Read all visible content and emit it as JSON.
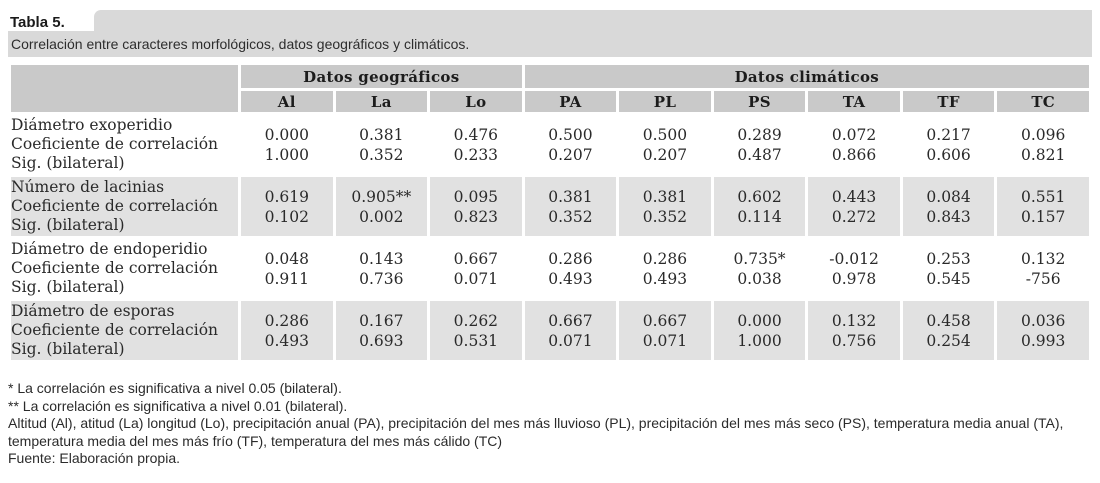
{
  "title": "Tabla 5.",
  "caption": "Correlación entre caracteres morfológicos, datos geográficos y climáticos.",
  "table": {
    "groups": [
      {
        "label": "Datos geográficos",
        "span": 3
      },
      {
        "label": "Datos climáticos",
        "span": 6
      }
    ],
    "columns": [
      "Al",
      "La",
      "Lo",
      "PA",
      "PL",
      "PS",
      "TA",
      "TF",
      "TC"
    ],
    "rows": [
      {
        "label_lines": [
          "Diámetro exoperidio",
          "Coeficiente de correlación",
          "Sig. (bilateral)"
        ],
        "coef": [
          "0.000",
          "0.381",
          "0.476",
          "0.500",
          "0.500",
          "0.289",
          "0.072",
          "0.217",
          "0.096"
        ],
        "sig": [
          "1.000",
          "0.352",
          "0.233",
          "0.207",
          "0.207",
          "0.487",
          "0.866",
          "0.606",
          "0.821"
        ]
      },
      {
        "label_lines": [
          "Número de lacinias",
          "Coeficiente de correlación",
          "Sig. (bilateral)"
        ],
        "coef": [
          "0.619",
          "0.905**",
          "0.095",
          "0.381",
          "0.381",
          "0.602",
          "0.443",
          "0.084",
          "0.551"
        ],
        "sig": [
          "0.102",
          "0.002",
          "0.823",
          "0.352",
          "0.352",
          "0.114",
          "0.272",
          "0.843",
          "0.157"
        ]
      },
      {
        "label_lines": [
          "Diámetro de endoperidio",
          "Coeficiente de correlación",
          "Sig. (bilateral)"
        ],
        "coef": [
          "0.048",
          "0.143",
          "0.667",
          "0.286",
          "0.286",
          "0.735*",
          "-0.012",
          "0.253",
          "0.132"
        ],
        "sig": [
          "0.911",
          "0.736",
          "0.071",
          "0.493",
          "0.493",
          "0.038",
          "0.978",
          "0.545",
          "-756"
        ]
      },
      {
        "label_lines": [
          "Diámetro de esporas",
          "Coeficiente de correlación",
          "Sig. (bilateral)"
        ],
        "coef": [
          "0.286",
          "0.167",
          "0.262",
          "0.667",
          "0.667",
          "0.000",
          "0.132",
          "0.458",
          "0.036"
        ],
        "sig": [
          "0.493",
          "0.693",
          "0.531",
          "0.071",
          "0.071",
          "1.000",
          "0.756",
          "0.254",
          "0.993"
        ]
      }
    ]
  },
  "footnotes": [
    "* La correlación es significativa a nivel 0.05 (bilateral).",
    "** La correlación es significativa a nivel 0.01 (bilateral).",
    "Altitud (Al), atitud (La) longitud (Lo), precipitación anual (PA), precipitación del mes más lluvioso (PL), precipitación del mes más seco (PS), temperatura media anual (TA), temperatura media del mes más frío (TF), temperatura del mes más cálido (TC)",
    "Fuente: Elaboración propia."
  ],
  "colors": {
    "caption_band": "#d9d9d9",
    "header_cell": "#c9c9c9",
    "alt_row": "#e1e1e1",
    "text": "#2a2a2a"
  }
}
